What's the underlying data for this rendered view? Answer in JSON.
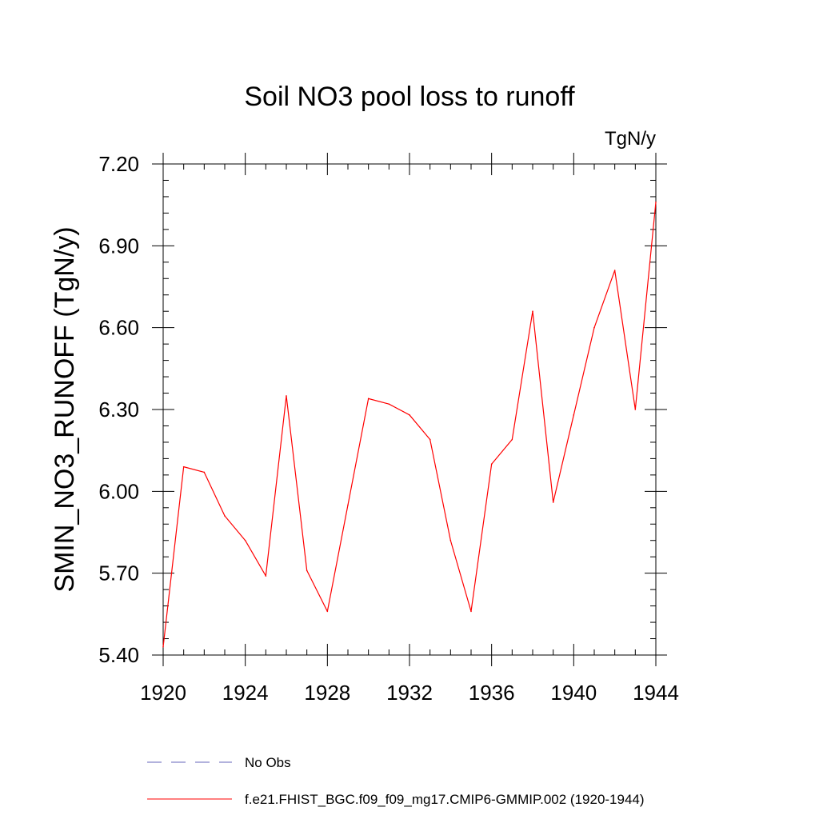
{
  "chart_data": {
    "type": "line",
    "title": "Soil NO3 pool loss to runoff",
    "units_label": "TgN/y",
    "xlabel": "",
    "ylabel": "SMIN_NO3_RUNOFF  (TgN/y)",
    "xlim": [
      1920,
      1944
    ],
    "ylim": [
      5.4,
      7.2
    ],
    "xticks": [
      1920,
      1924,
      1928,
      1932,
      1936,
      1940,
      1944
    ],
    "xtick_labels": [
      "1920",
      "1924",
      "1928",
      "1932",
      "1936",
      "1940",
      "1944"
    ],
    "yticks": [
      5.4,
      5.7,
      6.0,
      6.3,
      6.6,
      6.9,
      7.2
    ],
    "ytick_labels": [
      "5.40",
      "5.70",
      "6.00",
      "6.30",
      "6.60",
      "6.90",
      "7.20"
    ],
    "grid": false,
    "legend_position": "bottom",
    "series": [
      {
        "name": "f.e21.FHIST_BGC.f09_f09_mg17.CMIP6-GMMIP.002 (1920-1944)",
        "color": "#ff0000",
        "style": "solid",
        "x": [
          1920,
          1921,
          1922,
          1923,
          1924,
          1925,
          1926,
          1927,
          1928,
          1929,
          1930,
          1931,
          1932,
          1933,
          1934,
          1935,
          1936,
          1937,
          1938,
          1939,
          1940,
          1941,
          1942,
          1943,
          1944
        ],
        "values": [
          5.43,
          6.09,
          6.07,
          5.91,
          5.82,
          5.69,
          6.35,
          5.71,
          5.56,
          5.95,
          6.34,
          6.32,
          6.28,
          6.19,
          5.82,
          5.56,
          6.1,
          6.19,
          6.66,
          5.96,
          6.28,
          6.6,
          6.81,
          6.3,
          7.06
        ]
      },
      {
        "name": "No Obs",
        "color": "#6666bb",
        "style": "dashed",
        "x": [],
        "values": []
      }
    ]
  }
}
